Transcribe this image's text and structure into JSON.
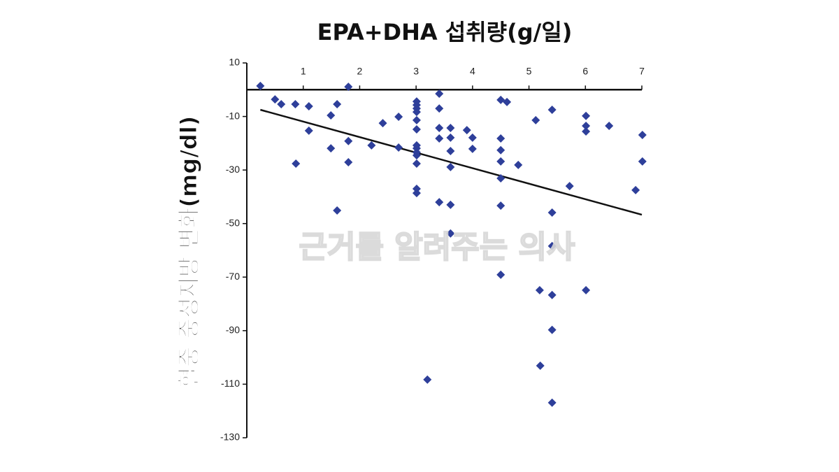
{
  "chart_data": {
    "type": "scatter",
    "title": "EPA+DHA 섭취량(g/일)",
    "y_label": "혈중 중성지방 변화(mg/dl)",
    "watermark": "근거를 알려주는 의사",
    "color": "#2e3f9a",
    "xlim": [
      0,
      7
    ],
    "xticks": [
      1,
      2,
      3,
      4,
      5,
      6,
      7
    ],
    "ylim": [
      -130,
      10
    ],
    "yticks": [
      10,
      -10,
      -30,
      -50,
      -70,
      -90,
      -110,
      -130
    ],
    "x": [
      0.24,
      0.5,
      0.61,
      0.86,
      1.1,
      1.1,
      0.87,
      1.49,
      1.49,
      1.6,
      1.6,
      1.8,
      1.8,
      1.8,
      2.21,
      2.41,
      2.69,
      2.69,
      3.01,
      3.01,
      3.01,
      3.01,
      3.01,
      3.01,
      3.01,
      3.01,
      3.01,
      3.01,
      3.01,
      3.01,
      3.01,
      3.2,
      3.41,
      3.41,
      3.41,
      3.41,
      3.41,
      3.61,
      3.61,
      3.61,
      3.61,
      3.61,
      3.61,
      3.9,
      4.0,
      4.0,
      4.5,
      4.5,
      4.5,
      4.5,
      4.5,
      4.5,
      4.5,
      4.61,
      4.81,
      5.12,
      5.19,
      5.2,
      5.41,
      5.41,
      5.41,
      5.41,
      5.41,
      5.41,
      5.72,
      6.01,
      6.01,
      6.01,
      6.01,
      6.42,
      6.89,
      7.01,
      7.01
    ],
    "values": [
      1.4,
      -3.6,
      -5.4,
      -5.4,
      -6.2,
      -15.3,
      -27.6,
      -9.6,
      -21.9,
      -5.4,
      -45.1,
      1.1,
      -19.2,
      -27.1,
      -20.8,
      -12.5,
      -10.1,
      -21.6,
      -4.4,
      -5.7,
      -7.0,
      -8.3,
      -11.4,
      -14.8,
      -20.8,
      -21.9,
      -23.4,
      -24.5,
      -27.6,
      -37.0,
      -38.6,
      -108.3,
      -1.5,
      -7.0,
      -14.3,
      -18.2,
      -42.0,
      -14.3,
      -17.9,
      -22.9,
      -28.9,
      -43.0,
      -53.7,
      -15.1,
      -17.9,
      -22.1,
      -3.8,
      -18.2,
      -22.6,
      -26.8,
      -33.1,
      -43.3,
      -69.1,
      -4.6,
      -28.1,
      -11.4,
      -74.9,
      -103.1,
      -7.5,
      -45.9,
      -58.4,
      -76.7,
      -89.7,
      -116.9,
      -36.0,
      -9.8,
      -13.5,
      -15.6,
      -74.9,
      -13.5,
      -37.5,
      -16.9,
      -26.8
    ],
    "trend": {
      "x": [
        0.24,
        7
      ],
      "values": [
        -7.5,
        -46.7
      ],
      "color": "#111111"
    }
  }
}
